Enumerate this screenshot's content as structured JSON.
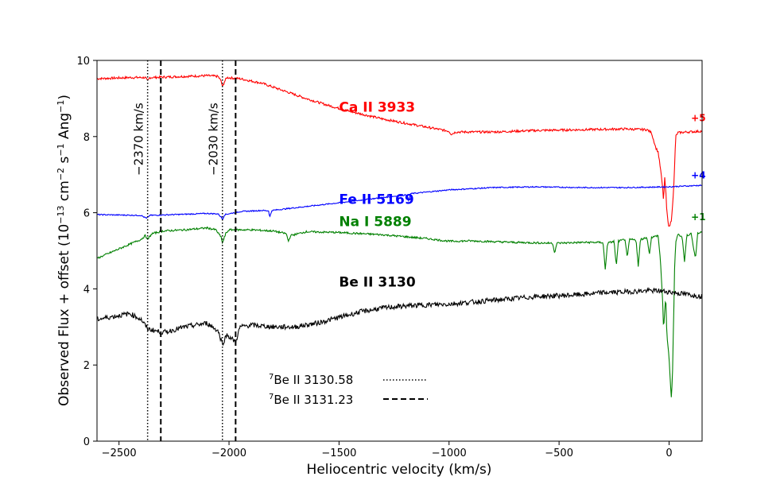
{
  "chart_data": {
    "type": "line",
    "title": "",
    "xlabel": "Heliocentric velocity (km/s)",
    "ylabel_parts": {
      "main": "Observed Flux + offset (10",
      "exp1": "−13",
      "mid1": " cm",
      "exp2": "−2",
      "mid2": " s",
      "exp3": "−1",
      "mid3": " Ang",
      "exp4": "−1",
      "end": ")"
    },
    "xlim": [
      -2600,
      150
    ],
    "ylim": [
      0,
      10
    ],
    "x_ticks": [
      -2500,
      -2000,
      -1500,
      -1000,
      -500,
      0
    ],
    "x_tick_labels": [
      "−2500",
      "−2000",
      "−1500",
      "−1000",
      "−500",
      "0"
    ],
    "y_ticks": [
      0,
      2,
      4,
      6,
      8,
      10
    ],
    "y_tick_labels": [
      "0",
      "2",
      "4",
      "6",
      "8",
      "10"
    ],
    "colors": {
      "ca": "#ff0000",
      "fe": "#0000ff",
      "na": "#008000",
      "be": "#000000"
    },
    "series": [
      {
        "key": "ca",
        "name": "Ca II 3933",
        "offset_label": "+5",
        "noise": 0.03,
        "points": [
          [
            -2600,
            9.52
          ],
          [
            -2450,
            9.55
          ],
          [
            -2380,
            9.55
          ],
          [
            -2370,
            9.45
          ],
          [
            -2360,
            9.55
          ],
          [
            -2200,
            9.58
          ],
          [
            -2100,
            9.6
          ],
          [
            -2050,
            9.58
          ],
          [
            -2035,
            9.45
          ],
          [
            -2030,
            9.3
          ],
          [
            -2020,
            9.45
          ],
          [
            -2010,
            9.55
          ],
          [
            -1950,
            9.52
          ],
          [
            -1850,
            9.4
          ],
          [
            -1750,
            9.2
          ],
          [
            -1650,
            9.0
          ],
          [
            -1550,
            8.82
          ],
          [
            -1450,
            8.66
          ],
          [
            -1300,
            8.46
          ],
          [
            -1150,
            8.3
          ],
          [
            -1000,
            8.14
          ],
          [
            -990,
            8.06
          ],
          [
            -970,
            8.12
          ],
          [
            -800,
            8.12
          ],
          [
            -600,
            8.16
          ],
          [
            -400,
            8.18
          ],
          [
            -200,
            8.2
          ],
          [
            -100,
            8.18
          ],
          [
            -80,
            8.1
          ],
          [
            -70,
            7.9
          ],
          [
            -60,
            7.7
          ],
          [
            -50,
            7.6
          ],
          [
            -40,
            7.2
          ],
          [
            -30,
            6.7
          ],
          [
            -25,
            6.3
          ],
          [
            -20,
            6.9
          ],
          [
            -15,
            6.6
          ],
          [
            -10,
            6.0
          ],
          [
            0,
            5.6
          ],
          [
            10,
            5.8
          ],
          [
            20,
            6.5
          ],
          [
            25,
            7.2
          ],
          [
            30,
            8.0
          ],
          [
            40,
            8.1
          ],
          [
            80,
            8.12
          ],
          [
            150,
            8.14
          ]
        ]
      },
      {
        "key": "fe",
        "name": "Fe II 5169",
        "offset_label": "+4",
        "noise": 0.015,
        "points": [
          [
            -2600,
            5.95
          ],
          [
            -2400,
            5.93
          ],
          [
            -2375,
            5.85
          ],
          [
            -2360,
            5.93
          ],
          [
            -2200,
            5.96
          ],
          [
            -2100,
            5.98
          ],
          [
            -2050,
            5.97
          ],
          [
            -2035,
            5.88
          ],
          [
            -2030,
            5.82
          ],
          [
            -2020,
            5.95
          ],
          [
            -1950,
            6.03
          ],
          [
            -1850,
            6.06
          ],
          [
            -1820,
            6.05
          ],
          [
            -1815,
            5.88
          ],
          [
            -1805,
            6.06
          ],
          [
            -1700,
            6.13
          ],
          [
            -1500,
            6.26
          ],
          [
            -1300,
            6.4
          ],
          [
            -1190,
            6.47
          ],
          [
            -1185,
            6.3
          ],
          [
            -1175,
            6.5
          ],
          [
            -1000,
            6.6
          ],
          [
            -800,
            6.66
          ],
          [
            -600,
            6.68
          ],
          [
            -400,
            6.66
          ],
          [
            -200,
            6.66
          ],
          [
            0,
            6.68
          ],
          [
            150,
            6.72
          ]
        ]
      },
      {
        "key": "na",
        "name": "Na I 5889",
        "offset_label": "+1",
        "noise": 0.025,
        "points": [
          [
            -2600,
            4.8
          ],
          [
            -2500,
            5.05
          ],
          [
            -2400,
            5.3
          ],
          [
            -2380,
            5.4
          ],
          [
            -2370,
            5.3
          ],
          [
            -2350,
            5.45
          ],
          [
            -2300,
            5.52
          ],
          [
            -2200,
            5.55
          ],
          [
            -2100,
            5.6
          ],
          [
            -2060,
            5.55
          ],
          [
            -2035,
            5.35
          ],
          [
            -2030,
            5.2
          ],
          [
            -2015,
            5.45
          ],
          [
            -2000,
            5.55
          ],
          [
            -1900,
            5.55
          ],
          [
            -1800,
            5.52
          ],
          [
            -1740,
            5.45
          ],
          [
            -1730,
            5.25
          ],
          [
            -1720,
            5.4
          ],
          [
            -1650,
            5.5
          ],
          [
            -1500,
            5.48
          ],
          [
            -1300,
            5.42
          ],
          [
            -1100,
            5.32
          ],
          [
            -1000,
            5.25
          ],
          [
            -900,
            5.26
          ],
          [
            -700,
            5.22
          ],
          [
            -530,
            5.2
          ],
          [
            -520,
            4.95
          ],
          [
            -510,
            5.2
          ],
          [
            -400,
            5.22
          ],
          [
            -300,
            5.22
          ],
          [
            -290,
            4.5
          ],
          [
            -280,
            5.2
          ],
          [
            -250,
            5.25
          ],
          [
            -240,
            4.6
          ],
          [
            -230,
            5.25
          ],
          [
            -200,
            5.3
          ],
          [
            -190,
            4.8
          ],
          [
            -180,
            5.3
          ],
          [
            -150,
            5.28
          ],
          [
            -140,
            4.6
          ],
          [
            -130,
            5.3
          ],
          [
            -100,
            5.35
          ],
          [
            -90,
            4.9
          ],
          [
            -80,
            5.35
          ],
          [
            -50,
            5.4
          ],
          [
            -40,
            4.8
          ],
          [
            -30,
            3.8
          ],
          [
            -25,
            2.9
          ],
          [
            -20,
            3.4
          ],
          [
            -15,
            3.8
          ],
          [
            -10,
            2.8
          ],
          [
            0,
            2.2
          ],
          [
            5,
            1.6
          ],
          [
            10,
            1.15
          ],
          [
            15,
            1.6
          ],
          [
            20,
            3.0
          ],
          [
            25,
            4.5
          ],
          [
            30,
            5.2
          ],
          [
            40,
            5.45
          ],
          [
            60,
            5.35
          ],
          [
            70,
            4.7
          ],
          [
            80,
            5.4
          ],
          [
            100,
            5.45
          ],
          [
            120,
            4.8
          ],
          [
            130,
            5.45
          ],
          [
            150,
            5.5
          ]
        ]
      },
      {
        "key": "be",
        "name": "Be II 3130",
        "offset_label": "",
        "noise": 0.065,
        "points": [
          [
            -2600,
            3.2
          ],
          [
            -2500,
            3.3
          ],
          [
            -2450,
            3.35
          ],
          [
            -2400,
            3.2
          ],
          [
            -2370,
            2.95
          ],
          [
            -2300,
            2.85
          ],
          [
            -2200,
            3.0
          ],
          [
            -2100,
            3.1
          ],
          [
            -2050,
            2.9
          ],
          [
            -2030,
            2.55
          ],
          [
            -2010,
            2.8
          ],
          [
            -1970,
            2.6
          ],
          [
            -1950,
            3.0
          ],
          [
            -1900,
            3.05
          ],
          [
            -1800,
            3.0
          ],
          [
            -1700,
            3.0
          ],
          [
            -1600,
            3.1
          ],
          [
            -1500,
            3.25
          ],
          [
            -1400,
            3.4
          ],
          [
            -1300,
            3.5
          ],
          [
            -1200,
            3.55
          ],
          [
            -1100,
            3.58
          ],
          [
            -1000,
            3.6
          ],
          [
            -900,
            3.65
          ],
          [
            -800,
            3.7
          ],
          [
            -700,
            3.75
          ],
          [
            -600,
            3.8
          ],
          [
            -500,
            3.82
          ],
          [
            -400,
            3.85
          ],
          [
            -300,
            3.9
          ],
          [
            -200,
            3.92
          ],
          [
            -100,
            3.95
          ],
          [
            -50,
            3.95
          ],
          [
            0,
            3.92
          ],
          [
            50,
            3.88
          ],
          [
            150,
            3.8
          ]
        ]
      }
    ],
    "vlines": [
      {
        "x": -2370,
        "style": "dotted",
        "label": "−2370 km/s"
      },
      {
        "x": -2310,
        "style": "dashed",
        "label": ""
      },
      {
        "x": -2030,
        "style": "dotted",
        "label": "−2030 km/s"
      },
      {
        "x": -1970,
        "style": "dashed",
        "label": ""
      }
    ],
    "legend": [
      {
        "sup": "7",
        "text": "Be II 3130.58",
        "style": "dotted"
      },
      {
        "sup": "7",
        "text": "Be II 3131.23",
        "style": "dashed"
      }
    ]
  }
}
